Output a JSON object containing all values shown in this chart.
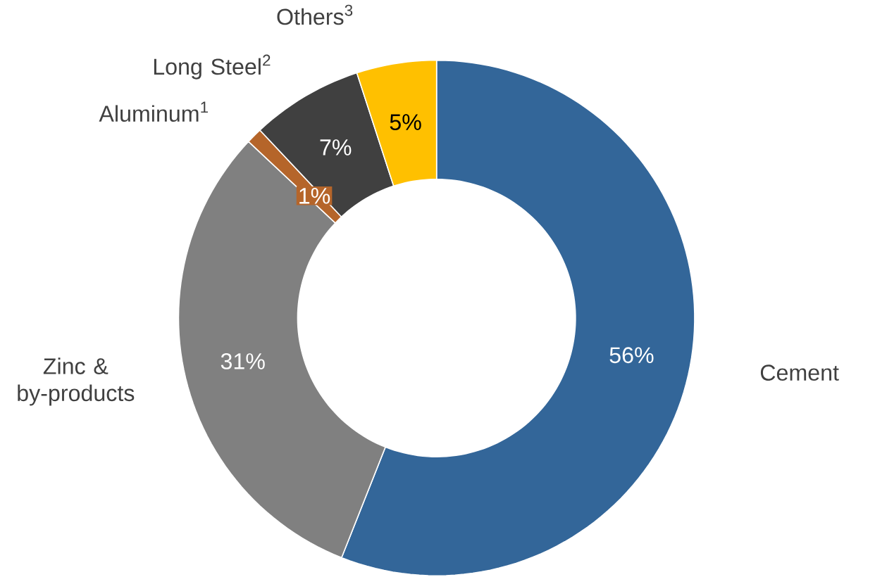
{
  "chart_data": {
    "type": "donut",
    "categories": [
      "Cement",
      "Zinc & by-products",
      "Aluminum$^{1}$",
      "Long Steel$^{2}$",
      "Others$^{3}$"
    ],
    "values": [
      56,
      31,
      1,
      7,
      5
    ],
    "colors": [
      "#336699",
      "#808080",
      "#b5652a",
      "#404040",
      "#ffc000"
    ],
    "value_labels": [
      "56%",
      "31%",
      "1%",
      "7%",
      "5%"
    ]
  }
}
